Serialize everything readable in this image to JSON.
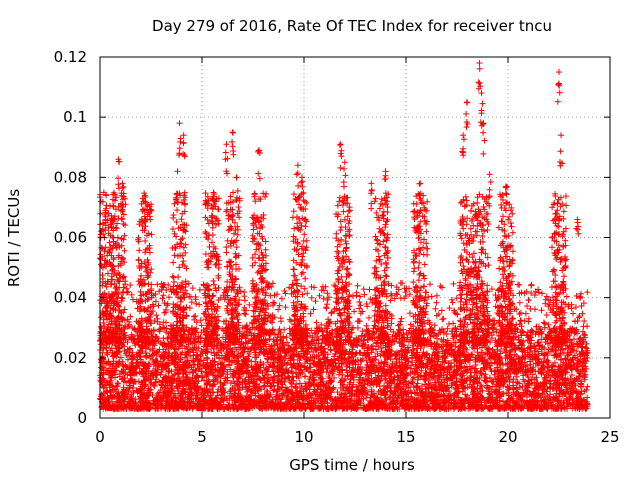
{
  "chart_data": {
    "type": "scatter",
    "title": "Day 279 of 2016, Rate Of TEC Index for receiver tncu",
    "xlabel": "GPS time / hours",
    "ylabel": "ROTI / TECUs",
    "xlim": [
      0,
      25
    ],
    "ylim": [
      0,
      0.12
    ],
    "xticks": [
      0,
      5,
      10,
      15,
      20,
      25
    ],
    "yticks": [
      0,
      0.02,
      0.04,
      0.06,
      0.08,
      0.1,
      0.12
    ],
    "xtick_labels": [
      "0",
      "5",
      "10",
      "15",
      "20",
      "25"
    ],
    "ytick_labels": [
      "0",
      "0.02",
      "0.04",
      "0.06",
      "0.08",
      "0.1",
      "0.12"
    ],
    "grid": true,
    "marker": "+",
    "marker_color": "#ff0000",
    "x_data_range": [
      0,
      23.9
    ],
    "typical_range": [
      0.003,
      0.03
    ],
    "peak_points": [
      {
        "x": 0.3,
        "y": 0.074
      },
      {
        "x": 0.9,
        "y": 0.086
      },
      {
        "x": 1.1,
        "y": 0.078
      },
      {
        "x": 2.2,
        "y": 0.072
      },
      {
        "x": 3.8,
        "y": 0.082
      },
      {
        "x": 3.9,
        "y": 0.098
      },
      {
        "x": 4.1,
        "y": 0.094
      },
      {
        "x": 5.5,
        "y": 0.073
      },
      {
        "x": 6.2,
        "y": 0.091
      },
      {
        "x": 6.5,
        "y": 0.095
      },
      {
        "x": 6.7,
        "y": 0.08
      },
      {
        "x": 7.8,
        "y": 0.089
      },
      {
        "x": 9.7,
        "y": 0.084
      },
      {
        "x": 9.9,
        "y": 0.08
      },
      {
        "x": 11.8,
        "y": 0.091
      },
      {
        "x": 12.0,
        "y": 0.085
      },
      {
        "x": 13.3,
        "y": 0.078
      },
      {
        "x": 14.0,
        "y": 0.082
      },
      {
        "x": 15.7,
        "y": 0.078
      },
      {
        "x": 17.8,
        "y": 0.094
      },
      {
        "x": 18.0,
        "y": 0.105
      },
      {
        "x": 18.6,
        "y": 0.118
      },
      {
        "x": 18.7,
        "y": 0.108
      },
      {
        "x": 18.8,
        "y": 0.098
      },
      {
        "x": 19.1,
        "y": 0.081
      },
      {
        "x": 19.9,
        "y": 0.077
      },
      {
        "x": 22.5,
        "y": 0.115
      },
      {
        "x": 22.6,
        "y": 0.094
      },
      {
        "x": 23.4,
        "y": 0.066
      }
    ],
    "activity_peaks_hours": [
      0.3,
      0.9,
      2.2,
      3.9,
      5.5,
      6.5,
      7.8,
      9.8,
      11.9,
      13.8,
      15.7,
      18.0,
      18.7,
      19.9,
      22.5
    ]
  }
}
